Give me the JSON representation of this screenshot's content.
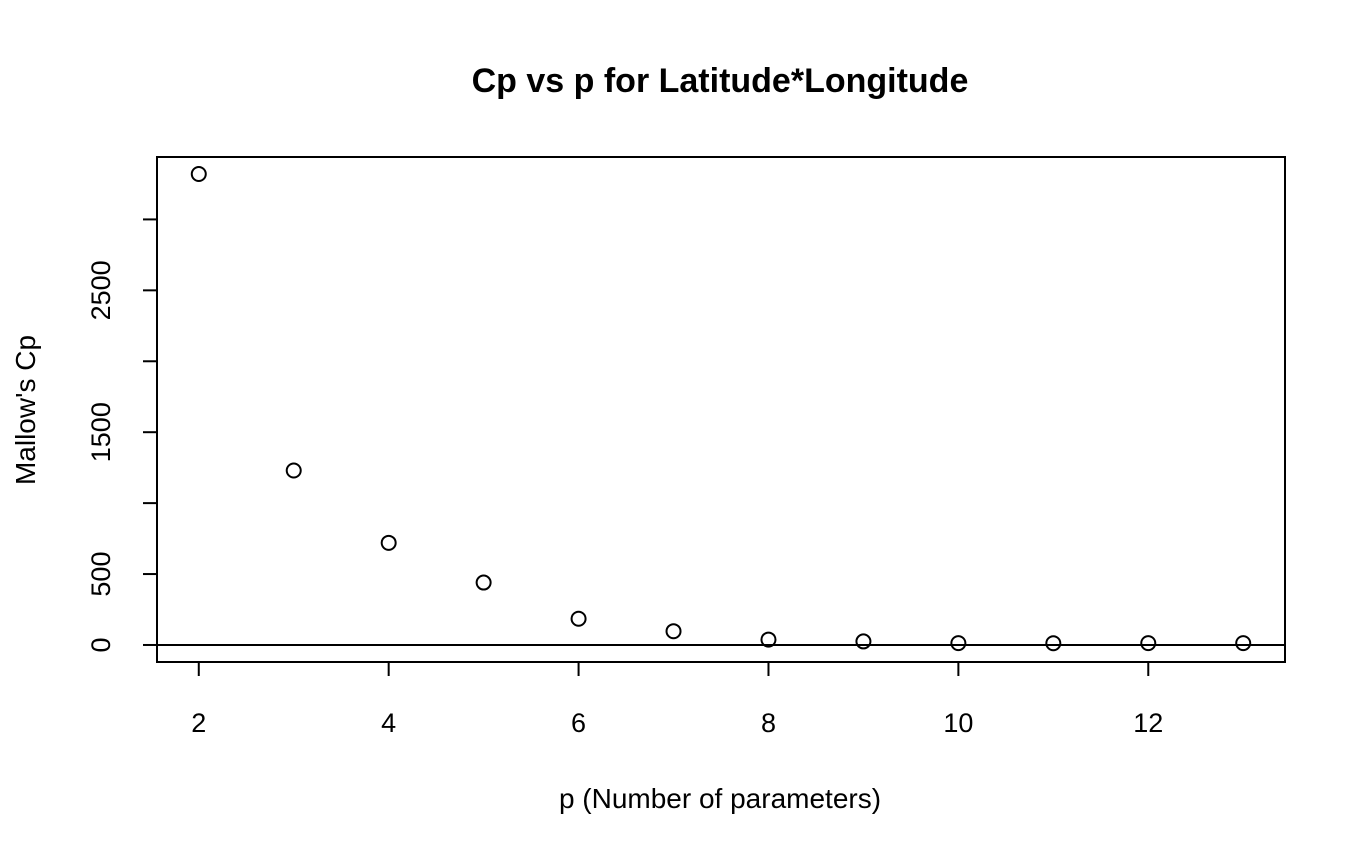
{
  "chart_data": {
    "type": "scatter",
    "title": "Cp vs p for Latitude*Longitude",
    "xlabel": "p (Number of parameters)",
    "ylabel": "Mallow's Cp",
    "xlim": [
      1.56,
      13.44
    ],
    "ylim": [
      -120,
      3440
    ],
    "x_ticks": [
      2,
      4,
      6,
      8,
      10,
      12
    ],
    "x_tick_labels": [
      "2",
      "4",
      "6",
      "8",
      "10",
      "12"
    ],
    "y_ticks": [
      0,
      500,
      1000,
      1500,
      2000,
      2500,
      3000
    ],
    "y_tick_labels": [
      "0",
      "500",
      "",
      "1500",
      "",
      "2500",
      ""
    ],
    "grid": false,
    "reference_line": {
      "orientation": "horizontal",
      "y": 0
    },
    "marker": "open-circle",
    "series": [
      {
        "x": [
          2,
          3,
          4,
          5,
          6,
          7,
          8,
          9,
          10,
          11,
          12,
          13
        ],
        "y": [
          3320,
          1230,
          720,
          440,
          185,
          97,
          38,
          25,
          13,
          12,
          13,
          13
        ]
      }
    ]
  }
}
